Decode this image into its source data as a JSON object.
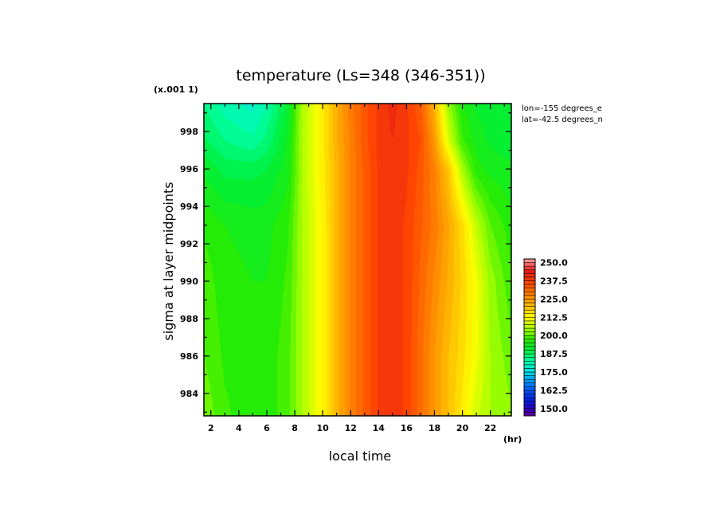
{
  "chart_data": {
    "type": "heatmap",
    "title": "temperature (Ls=348 (346-351))",
    "xlabel": "local time",
    "x_unit": "(hr)",
    "ylabel": "sigma at layer midpoints",
    "y_multiplier": "(x.001 1)",
    "annotations": [
      "lon=-155 degrees_e",
      "lat=-42.5 degrees_n"
    ],
    "xlim": [
      1.5,
      23.5
    ],
    "ylim": [
      0.9995,
      0.9828
    ],
    "x_ticks": [
      2,
      4,
      6,
      8,
      10,
      12,
      14,
      16,
      18,
      20,
      22
    ],
    "x_tick_labels": [
      "2",
      "4",
      "6",
      "8",
      "10",
      "12",
      "14",
      "16",
      "18",
      "20",
      "22"
    ],
    "y_ticks": [
      984,
      986,
      988,
      990,
      992,
      994,
      996,
      998
    ],
    "y_tick_labels": [
      "984",
      "986",
      "988",
      "990",
      "992",
      "994",
      "996",
      "998"
    ],
    "grid": false,
    "colorbar": {
      "min": 145,
      "max": 252.5,
      "step": 2.5,
      "labels": [
        "250.0",
        "237.5",
        "225.0",
        "212.5",
        "200.0",
        "187.5",
        "175.0",
        "162.5",
        "150.0"
      ],
      "label_values": [
        250,
        237.5,
        225,
        212.5,
        200,
        187.5,
        175,
        162.5,
        150
      ],
      "placement": "right"
    },
    "x": [
      1.5,
      3,
      5,
      6,
      7.5,
      8.5,
      10,
      11,
      12,
      13,
      14,
      15,
      16,
      17,
      18,
      19,
      20,
      21,
      22,
      23.5
    ],
    "y": [
      0.9828,
      0.986,
      0.99,
      0.993,
      0.996,
      0.9975,
      0.9995
    ],
    "z": [
      [
        202,
        198,
        196,
        196,
        199,
        205,
        213,
        221,
        228,
        233,
        238,
        239,
        237,
        231,
        225,
        220,
        214,
        208,
        205,
        203
      ],
      [
        200,
        197,
        196,
        196,
        199,
        205,
        213,
        221,
        228,
        233,
        238,
        239,
        237,
        231,
        225,
        220,
        216,
        211,
        205,
        201
      ],
      [
        199,
        196,
        195,
        195,
        198,
        205,
        213,
        221,
        228,
        233,
        238,
        239,
        237,
        232,
        227,
        222,
        217,
        211,
        204,
        198
      ],
      [
        197,
        195,
        194,
        194,
        197,
        205,
        213,
        221,
        228,
        233,
        238,
        239,
        237,
        233,
        229,
        223,
        216,
        207,
        200,
        196
      ],
      [
        192,
        189,
        189,
        190,
        194,
        205,
        214,
        221,
        228,
        233,
        238,
        239,
        238,
        234,
        228,
        219,
        205,
        196,
        194,
        193
      ],
      [
        188,
        185,
        183,
        186,
        193,
        205,
        214,
        222,
        228,
        234,
        238,
        240,
        238,
        235,
        225,
        209,
        198,
        194,
        192,
        191
      ],
      [
        185,
        181,
        179,
        182,
        191,
        205,
        214,
        222,
        229,
        234,
        238,
        241,
        238,
        233,
        221,
        204,
        195,
        192,
        191,
        190
      ]
    ]
  }
}
